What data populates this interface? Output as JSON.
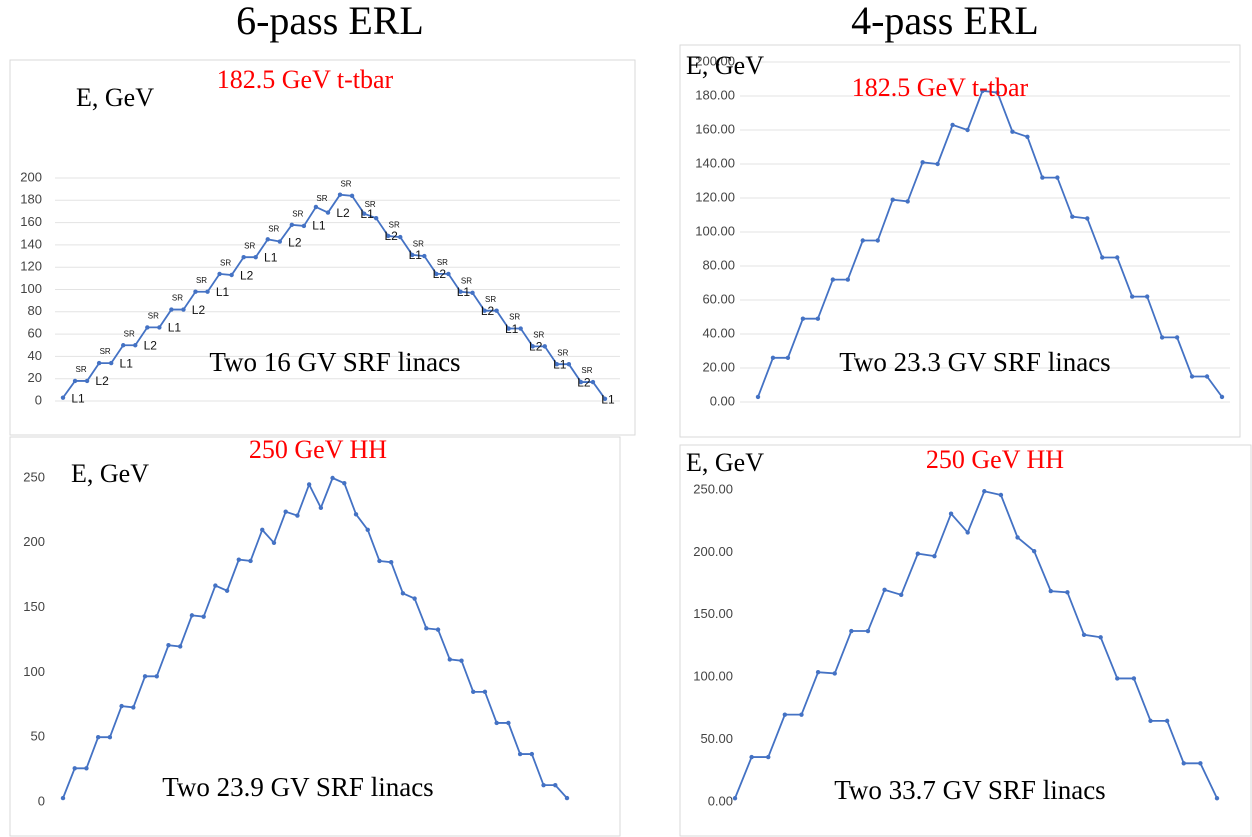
{
  "headings": [
    "6-pass ERL",
    "4-pass ERL"
  ],
  "chart_data": [
    {
      "type": "line",
      "title": "182.5 GeV t-tbar",
      "ylabel": "E, GeV",
      "annotation": "Two 16 GV SRF linacs",
      "color": "#4472c4",
      "grid": true,
      "ylim": [
        0,
        200
      ],
      "yticks": [
        0,
        20,
        40,
        60,
        80,
        100,
        120,
        140,
        160,
        180,
        200
      ],
      "values": [
        3,
        18,
        18,
        34,
        34,
        50,
        50,
        66,
        66,
        82,
        82,
        98,
        98,
        114,
        113,
        129,
        129,
        145,
        143,
        158,
        157,
        174,
        169,
        185,
        184,
        168,
        164,
        148,
        147,
        131,
        130,
        114,
        114,
        98,
        97,
        81,
        81,
        65,
        65,
        49,
        49,
        33,
        33,
        17,
        17,
        2
      ],
      "segment_labels": [
        "L1",
        "SR",
        "L2",
        "SR",
        "L1",
        "SR",
        "L2",
        "SR",
        "L1",
        "SR",
        "L2",
        "SR",
        "L1",
        "SR",
        "L2",
        "SR",
        "L1",
        "SR",
        "L2",
        "SR",
        "L1",
        "SR",
        "L2",
        "SR",
        "L1",
        "SR",
        "L2",
        "SR",
        "L1",
        "SR",
        "L2",
        "SR",
        "L1",
        "SR",
        "L2",
        "SR",
        "L1",
        "SR",
        "L2",
        "SR",
        "L1",
        "SR",
        "L2",
        "SR",
        "L1"
      ]
    },
    {
      "type": "line",
      "title": "182.5 GeV t-tbar",
      "ylabel": "E, GeV",
      "annotation": "Two 23.3 GV SRF linacs",
      "color": "#4472c4",
      "grid": true,
      "ylim": [
        0,
        200
      ],
      "yticks": [
        {
          "value": 0,
          "label": "0.00"
        },
        {
          "value": 20,
          "label": "20.00"
        },
        {
          "value": 40,
          "label": "40.00"
        },
        {
          "value": 60,
          "label": "60.00"
        },
        {
          "value": 80,
          "label": "80.00"
        },
        {
          "value": 100,
          "label": "100.00"
        },
        {
          "value": 120,
          "label": "120.00"
        },
        {
          "value": 140,
          "label": "140.00"
        },
        {
          "value": 160,
          "label": "160.00"
        },
        {
          "value": 180,
          "label": "180.00"
        },
        {
          "value": 200,
          "label": "200.00"
        }
      ],
      "values": [
        3,
        26,
        26,
        49,
        49,
        72,
        72,
        95,
        95,
        119,
        118,
        141,
        140,
        163,
        160,
        183,
        182,
        159,
        156,
        132,
        132,
        109,
        108,
        85,
        85,
        62,
        62,
        38,
        38,
        15,
        15,
        3
      ]
    },
    {
      "type": "line",
      "title": "250 GeV HH",
      "ylabel": "E, GeV",
      "annotation": "Two 23.9 GV SRF linacs",
      "color": "#4472c4",
      "grid": false,
      "ylim": [
        0,
        250
      ],
      "yticks": [
        0,
        50,
        100,
        150,
        200,
        250
      ],
      "values": [
        3,
        26,
        26,
        50,
        50,
        74,
        73,
        97,
        97,
        121,
        120,
        144,
        143,
        167,
        163,
        187,
        186,
        210,
        200,
        224,
        221,
        245,
        227,
        250,
        246,
        222,
        210,
        186,
        185,
        161,
        157,
        134,
        133,
        110,
        109,
        85,
        85,
        61,
        61,
        37,
        37,
        13,
        13,
        3
      ]
    },
    {
      "type": "line",
      "title": "250 GeV HH",
      "ylabel": "E, GeV",
      "annotation": "Two 33.7 GV SRF linacs",
      "color": "#4472c4",
      "grid": false,
      "ylim": [
        0,
        250
      ],
      "yticks": [
        {
          "value": 0,
          "label": "0.00"
        },
        {
          "value": 50,
          "label": "50.00"
        },
        {
          "value": 100,
          "label": "100.00"
        },
        {
          "value": 150,
          "label": "150.00"
        },
        {
          "value": 200,
          "label": "200.00"
        },
        {
          "value": 250,
          "label": "250.00"
        }
      ],
      "values": [
        3,
        36,
        36,
        70,
        70,
        104,
        103,
        137,
        137,
        170,
        166,
        199,
        197,
        231,
        216,
        249,
        246,
        212,
        201,
        169,
        168,
        134,
        132,
        99,
        99,
        65,
        65,
        31,
        31,
        3
      ]
    }
  ]
}
